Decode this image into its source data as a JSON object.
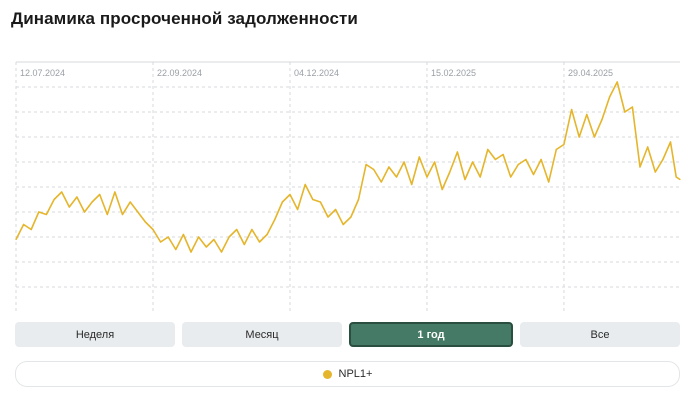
{
  "title": "Динамика просроченной задолженности",
  "range_buttons": [
    {
      "label": "Неделя",
      "active": false
    },
    {
      "label": "Месяц",
      "active": false
    },
    {
      "label": "1 год",
      "active": true
    },
    {
      "label": "Все",
      "active": false
    }
  ],
  "legend": {
    "label": "NPL1+",
    "color": "#e5b52b"
  },
  "colors": {
    "line": "#e5b52b",
    "grid": "#d5d9dc",
    "active_button": "#447a66"
  },
  "chart_data": {
    "type": "line",
    "title": "Динамика просроченной задолженности",
    "x_ticks": [
      "12.07.2024",
      "22.09.2024",
      "04.12.2024",
      "15.02.2025",
      "29.04.2025"
    ],
    "xlim": [
      "2024-07-12",
      "2025-06-26"
    ],
    "ylim": [
      0,
      10
    ],
    "y_ticks_labeled": false,
    "grid": true,
    "legend_position": "bottom",
    "series": [
      {
        "name": "NPL1+",
        "color": "#e5b52b",
        "points": [
          [
            "2024-07-12",
            2.9
          ],
          [
            "2024-07-16",
            3.5
          ],
          [
            "2024-07-20",
            3.3
          ],
          [
            "2024-07-24",
            4.0
          ],
          [
            "2024-07-28",
            3.9
          ],
          [
            "2024-08-01",
            4.5
          ],
          [
            "2024-08-05",
            4.8
          ],
          [
            "2024-08-09",
            4.2
          ],
          [
            "2024-08-13",
            4.6
          ],
          [
            "2024-08-17",
            4.0
          ],
          [
            "2024-08-21",
            4.4
          ],
          [
            "2024-08-25",
            4.7
          ],
          [
            "2024-08-29",
            3.9
          ],
          [
            "2024-09-02",
            4.8
          ],
          [
            "2024-09-06",
            3.9
          ],
          [
            "2024-09-10",
            4.4
          ],
          [
            "2024-09-14",
            4.0
          ],
          [
            "2024-09-18",
            3.6
          ],
          [
            "2024-09-22",
            3.3
          ],
          [
            "2024-09-26",
            2.8
          ],
          [
            "2024-09-30",
            3.0
          ],
          [
            "2024-10-04",
            2.5
          ],
          [
            "2024-10-08",
            3.1
          ],
          [
            "2024-10-12",
            2.4
          ],
          [
            "2024-10-16",
            3.0
          ],
          [
            "2024-10-20",
            2.6
          ],
          [
            "2024-10-24",
            2.9
          ],
          [
            "2024-10-28",
            2.4
          ],
          [
            "2024-11-01",
            3.0
          ],
          [
            "2024-11-05",
            3.3
          ],
          [
            "2024-11-09",
            2.7
          ],
          [
            "2024-11-13",
            3.3
          ],
          [
            "2024-11-17",
            2.8
          ],
          [
            "2024-11-21",
            3.1
          ],
          [
            "2024-11-25",
            3.7
          ],
          [
            "2024-11-29",
            4.4
          ],
          [
            "2024-12-03",
            4.7
          ],
          [
            "2024-12-07",
            4.1
          ],
          [
            "2024-12-11",
            5.1
          ],
          [
            "2024-12-15",
            4.5
          ],
          [
            "2024-12-19",
            4.4
          ],
          [
            "2024-12-23",
            3.8
          ],
          [
            "2024-12-27",
            4.1
          ],
          [
            "2024-12-31",
            3.5
          ],
          [
            "2025-01-04",
            3.8
          ],
          [
            "2025-01-08",
            4.5
          ],
          [
            "2025-01-12",
            5.9
          ],
          [
            "2025-01-16",
            5.7
          ],
          [
            "2025-01-20",
            5.2
          ],
          [
            "2025-01-24",
            5.8
          ],
          [
            "2025-01-28",
            5.4
          ],
          [
            "2025-02-01",
            6.0
          ],
          [
            "2025-02-05",
            5.1
          ],
          [
            "2025-02-09",
            6.2
          ],
          [
            "2025-02-13",
            5.4
          ],
          [
            "2025-02-17",
            6.0
          ],
          [
            "2025-02-21",
            4.9
          ],
          [
            "2025-02-25",
            5.6
          ],
          [
            "2025-03-01",
            6.4
          ],
          [
            "2025-03-05",
            5.3
          ],
          [
            "2025-03-09",
            6.0
          ],
          [
            "2025-03-13",
            5.4
          ],
          [
            "2025-03-17",
            6.5
          ],
          [
            "2025-03-21",
            6.1
          ],
          [
            "2025-03-25",
            6.3
          ],
          [
            "2025-03-29",
            5.4
          ],
          [
            "2025-04-02",
            5.9
          ],
          [
            "2025-04-06",
            6.1
          ],
          [
            "2025-04-10",
            5.5
          ],
          [
            "2025-04-14",
            6.1
          ],
          [
            "2025-04-18",
            5.2
          ],
          [
            "2025-04-22",
            6.5
          ],
          [
            "2025-04-26",
            6.7
          ],
          [
            "2025-04-30",
            8.1
          ],
          [
            "2025-05-04",
            7.0
          ],
          [
            "2025-05-08",
            7.9
          ],
          [
            "2025-05-12",
            7.0
          ],
          [
            "2025-05-16",
            7.7
          ],
          [
            "2025-05-20",
            8.6
          ],
          [
            "2025-05-24",
            9.2
          ],
          [
            "2025-05-28",
            8.0
          ],
          [
            "2025-06-01",
            8.2
          ],
          [
            "2025-06-05",
            5.8
          ],
          [
            "2025-06-09",
            6.6
          ],
          [
            "2025-06-13",
            5.6
          ],
          [
            "2025-06-17",
            6.1
          ],
          [
            "2025-06-21",
            6.8
          ],
          [
            "2025-06-24",
            5.4
          ],
          [
            "2025-06-26",
            5.3
          ]
        ]
      }
    ]
  }
}
